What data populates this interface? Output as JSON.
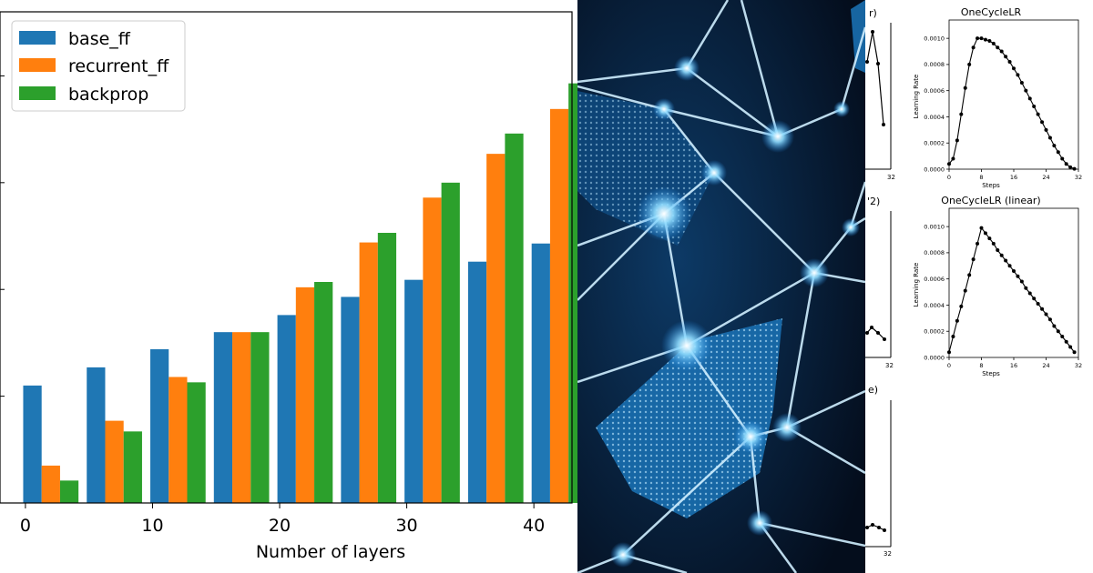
{
  "chart_data": [
    {
      "type": "bar",
      "title": "",
      "xlabel": "Number of layers",
      "ylabel": "",
      "x_ticks": [
        "0",
        "10",
        "20",
        "30",
        "40"
      ],
      "xlim": [
        -2,
        43
      ],
      "ylim": [
        0,
        4.6
      ],
      "grid": false,
      "legend": "top-left",
      "categories": [
        2,
        7,
        12,
        17,
        22,
        27,
        32,
        37,
        42
      ],
      "series": [
        {
          "name": "base_ff",
          "color": "#1f77b4",
          "values": [
            1.1,
            1.27,
            1.44,
            1.6,
            1.76,
            1.93,
            2.09,
            2.26,
            2.43
          ]
        },
        {
          "name": "recurrent_ff",
          "color": "#ff7f0e",
          "values": [
            0.35,
            0.77,
            1.18,
            1.6,
            2.02,
            2.44,
            2.86,
            3.27,
            3.69
          ]
        },
        {
          "name": "backprop",
          "color": "#2ca02c",
          "values": [
            0.21,
            0.67,
            1.13,
            1.6,
            2.07,
            2.53,
            3.0,
            3.46,
            3.93
          ]
        }
      ]
    },
    {
      "type": "line",
      "title": "OneCycleLR",
      "xlabel": "Steps",
      "ylabel": "Learning Rate",
      "x_ticks": [
        "0",
        "8",
        "16",
        "24",
        "32"
      ],
      "y_ticks": [
        "0.0000",
        "0.0002",
        "0.0004",
        "0.0006",
        "0.0008",
        "0.0010"
      ],
      "xlim": [
        0,
        32
      ],
      "ylim": [
        0,
        0.00114
      ],
      "x": [
        0,
        1,
        2,
        3,
        4,
        5,
        6,
        7,
        8,
        9,
        10,
        11,
        12,
        13,
        14,
        15,
        16,
        17,
        18,
        19,
        20,
        21,
        22,
        23,
        24,
        25,
        26,
        27,
        28,
        29,
        30,
        31
      ],
      "y": [
        4e-05,
        8e-05,
        0.00022,
        0.00042,
        0.00062,
        0.0008,
        0.00093,
        0.001,
        0.001,
        0.00099,
        0.00098,
        0.00096,
        0.00093,
        0.0009,
        0.00086,
        0.00082,
        0.00077,
        0.00072,
        0.00066,
        0.0006,
        0.00054,
        0.00048,
        0.00042,
        0.00036,
        0.0003,
        0.00024,
        0.00018,
        0.00013,
        8e-05,
        4e-05,
        1.5e-05,
        3e-06
      ]
    },
    {
      "type": "line",
      "title": "OneCycleLR (linear)",
      "xlabel": "Steps",
      "ylabel": "Learning Rate",
      "x_ticks": [
        "0",
        "8",
        "16",
        "24",
        "32"
      ],
      "y_ticks": [
        "0.0000",
        "0.0002",
        "0.0004",
        "0.0006",
        "0.0008",
        "0.0010"
      ],
      "xlim": [
        0,
        32
      ],
      "ylim": [
        0,
        0.00114
      ],
      "x": [
        0,
        1,
        2,
        3,
        4,
        5,
        6,
        7,
        8,
        9,
        10,
        11,
        12,
        13,
        14,
        15,
        16,
        17,
        18,
        19,
        20,
        21,
        22,
        23,
        24,
        25,
        26,
        27,
        28,
        29,
        30,
        31
      ],
      "y": [
        4e-05,
        0.00016,
        0.00028,
        0.00039,
        0.00051,
        0.00063,
        0.00075,
        0.00087,
        0.00099,
        0.00095,
        0.00091,
        0.00087,
        0.00082,
        0.00078,
        0.00074,
        0.0007,
        0.00066,
        0.00062,
        0.00058,
        0.00053,
        0.00049,
        0.00045,
        0.00041,
        0.00037,
        0.00033,
        0.00029,
        0.00024,
        0.0002,
        0.00016,
        0.00012,
        8e-05,
        4e-05
      ]
    }
  ],
  "strip": {
    "titles": [
      "r)",
      "'2)",
      "e)"
    ],
    "tick_labels": [
      "32",
      "32",
      "32"
    ]
  },
  "artwork": {
    "colors": {
      "background": "#061427",
      "line": "#cfeeff",
      "glow": "#5fc8ff",
      "crystal": "#1f78b8"
    }
  }
}
